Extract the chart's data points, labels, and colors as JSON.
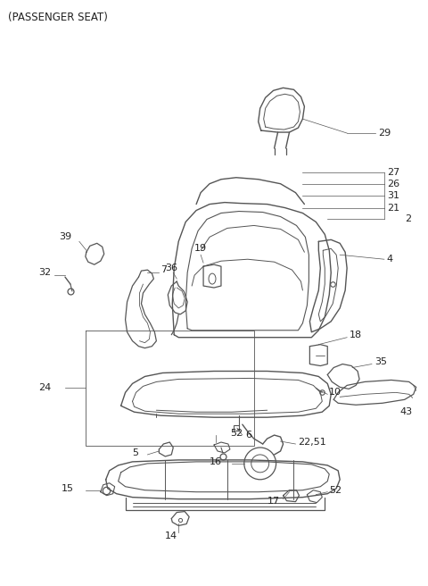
{
  "title": "(PASSENGER SEAT)",
  "background_color": "#ffffff",
  "title_fontsize": 8.5,
  "label_fontsize": 8,
  "fig_width": 4.8,
  "fig_height": 6.56,
  "dpi": 100,
  "line_color": "#555555",
  "lw": 0.9
}
